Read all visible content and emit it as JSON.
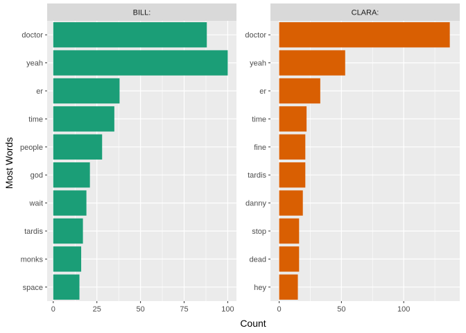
{
  "chart_data": {
    "type": "bar",
    "orientation": "horizontal",
    "xlabel": "Count",
    "ylabel": "Most Words",
    "grid": true,
    "legend": "none",
    "panels": [
      {
        "name": "BILL:",
        "color": "#1b9e77",
        "categories": [
          "doctor",
          "yeah",
          "er",
          "time",
          "people",
          "god",
          "wait",
          "tardis",
          "monks",
          "space"
        ],
        "values": [
          88,
          100,
          38,
          35,
          28,
          21,
          19,
          17,
          16,
          15
        ],
        "xlim": [
          -3.5,
          105
        ],
        "xticks": [
          0,
          25,
          50,
          75,
          100
        ]
      },
      {
        "name": "CLARA:",
        "color": "#d95f02",
        "categories": [
          "doctor",
          "yeah",
          "er",
          "time",
          "fine",
          "tardis",
          "danny",
          "stop",
          "dead",
          "hey"
        ],
        "values": [
          137,
          53,
          33,
          22,
          21,
          21,
          19,
          16,
          16,
          15
        ],
        "xlim": [
          -7,
          145
        ],
        "xticks": [
          0,
          50,
          100
        ]
      }
    ]
  }
}
